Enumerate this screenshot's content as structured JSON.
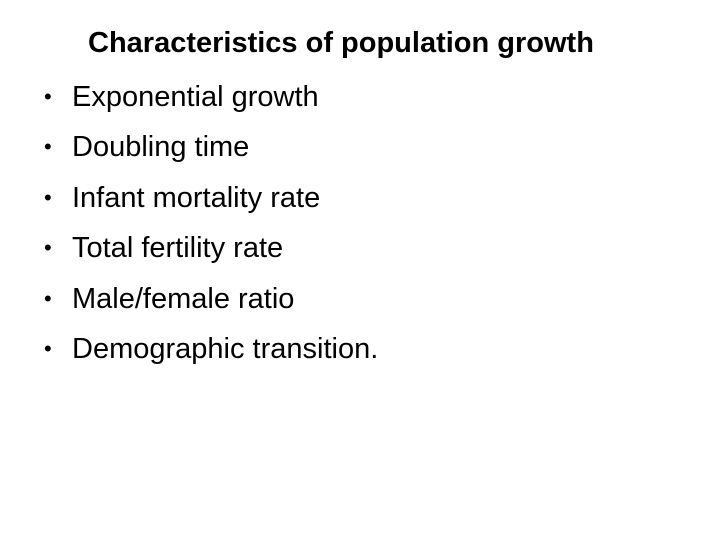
{
  "slide": {
    "title": "Characteristics of population growth",
    "bullet_symbol": "•",
    "items": [
      "Exponential growth",
      "Doubling time",
      "Infant mortality rate",
      "Total fertility rate",
      "Male/female ratio",
      "Demographic transition."
    ]
  }
}
